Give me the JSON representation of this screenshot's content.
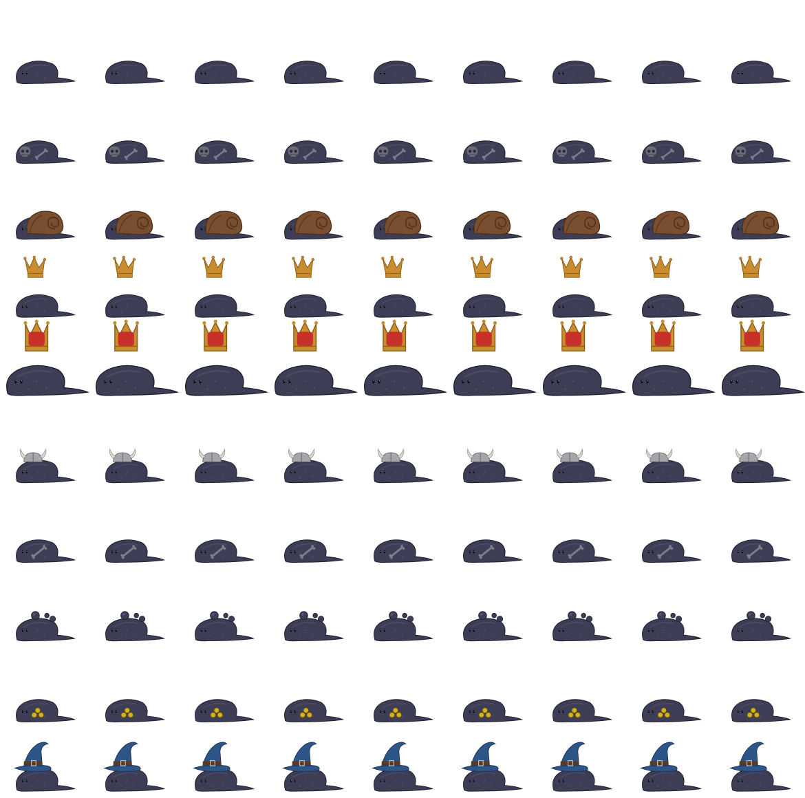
{
  "colors": {
    "background": "#ffffff",
    "slime_body": "#3d3d56",
    "slime_dark": "#1f1f2e",
    "slime_highlight": "#5a5a78",
    "eye": "#0c0c14",
    "eye_shine": "#ffffff",
    "skull": "#6a6a7a",
    "bone": "#7c7c8a",
    "shell": "#7a4e30",
    "shell_dark": "#4e2f18",
    "gold": "#c98d2e",
    "gold_dark": "#8a5a16",
    "ruby": "#c8302a",
    "helmet": "#a6a6aa",
    "horn": "#d8d8d0",
    "coin": "#d4b21e",
    "wizard_hat": "#2d5587",
    "hat_band": "#5a3a22",
    "buckle": "#bfbfbf"
  },
  "sprite_sheet": {
    "frames_per_row": 9,
    "rows": [
      {
        "variant": "plain-slime",
        "icon": "slime-icon",
        "scale": "normal"
      },
      {
        "variant": "skull-slime",
        "icon": "skull-icon",
        "scale": "normal"
      },
      {
        "variant": "snail-slime",
        "icon": "snail-shell-icon",
        "scale": "normal"
      },
      {
        "variant": "crown-slime",
        "icon": "crown-icon",
        "scale": "normal"
      },
      {
        "variant": "king-slime",
        "icon": "jeweled-crown-icon",
        "scale": "large"
      },
      {
        "variant": "viking-slime",
        "icon": "horned-helmet-icon",
        "scale": "normal"
      },
      {
        "variant": "bone-slime",
        "icon": "bone-icon",
        "scale": "normal"
      },
      {
        "variant": "bubble-slime",
        "icon": "bubble-icon",
        "scale": "normal"
      },
      {
        "variant": "coin-slime",
        "icon": "coin-icon",
        "scale": "normal"
      },
      {
        "variant": "wizard-slime",
        "icon": "wizard-hat-icon",
        "scale": "normal"
      }
    ]
  }
}
